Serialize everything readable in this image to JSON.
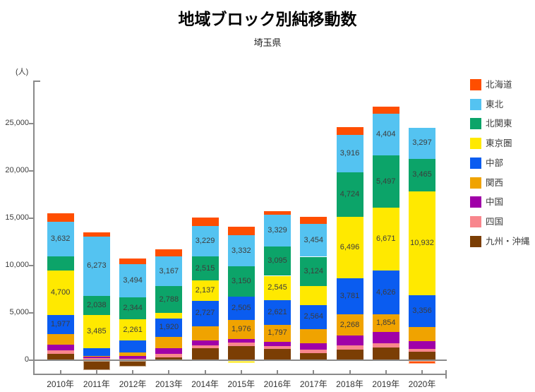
{
  "chart_data": {
    "type": "bar",
    "stacked": true,
    "title": "地域ブロック別純移動数",
    "subtitle": "埼玉県",
    "ylabel": "(人)",
    "xlabel": "",
    "grid": false,
    "legend_position": "right",
    "ylim": [
      -1500,
      29500
    ],
    "axis_color": "#8a8a8a",
    "label_color": "#3c3c3c",
    "y_ticks": [
      {
        "v": 0,
        "label": "0"
      },
      {
        "v": 5000,
        "label": "5,000"
      },
      {
        "v": 10000,
        "label": "10,000"
      },
      {
        "v": 15000,
        "label": "15,000"
      },
      {
        "v": 20000,
        "label": "20,000"
      },
      {
        "v": 25000,
        "label": "25,000"
      }
    ],
    "categories": [
      "2010年",
      "2011年",
      "2012年",
      "2013年",
      "2014年",
      "2015年",
      "2016年",
      "2017年",
      "2018年",
      "2019年",
      "2020年"
    ],
    "stack_bottom_to_top": [
      "九州・沖縄",
      "四国",
      "中国",
      "関西",
      "中部",
      "東京圏",
      "北関東",
      "東北",
      "北海道"
    ],
    "series": [
      {
        "name": "北海道",
        "color": "#FF4E00",
        "values": [
          900,
          420,
          560,
          730,
          930,
          860,
          370,
          740,
          880,
          810,
          -300
        ],
        "labels": [
          null,
          null,
          null,
          null,
          null,
          null,
          null,
          null,
          null,
          null,
          null
        ]
      },
      {
        "name": "東北",
        "color": "#54C3F1",
        "values": [
          3632,
          6273,
          3494,
          3167,
          3229,
          3332,
          3329,
          3454,
          3916,
          4404,
          3297
        ],
        "labels": [
          "3,632",
          "6,273",
          "3,494",
          "3,167",
          "3,229",
          "3,332",
          "3,329",
          "3,454",
          "3,916",
          "4,404",
          "3,297"
        ]
      },
      {
        "name": "北関東",
        "color": "#0CA469",
        "values": [
          1500,
          2038,
          2344,
          2788,
          2515,
          3150,
          3095,
          3124,
          4724,
          5497,
          3465
        ],
        "labels": [
          null,
          "2,038",
          "2,344",
          "2,788",
          "2,515",
          "3,150",
          "3,095",
          "3,124",
          "4,724",
          "5,497",
          "3,465"
        ]
      },
      {
        "name": "東京圏",
        "color": "#FFE900",
        "values": [
          4700,
          3485,
          2261,
          610,
          2137,
          -245,
          2545,
          1960,
          6496,
          6671,
          10932
        ],
        "labels": [
          "4,700",
          "3,485",
          "2,261",
          null,
          "2,137",
          null,
          "2,545",
          null,
          "6,496",
          "6,671",
          "10,932"
        ]
      },
      {
        "name": "中部",
        "color": "#0A5CF0",
        "values": [
          1977,
          850,
          1200,
          1920,
          2727,
          2505,
          2621,
          2564,
          3781,
          4626,
          3356
        ],
        "labels": [
          "1,977",
          null,
          null,
          "1,920",
          "2,727",
          "2,505",
          "2,621",
          "2,564",
          "3,781",
          "4,626",
          "3,356"
        ]
      },
      {
        "name": "関西",
        "color": "#F0A300",
        "values": [
          1180,
          100,
          440,
          1220,
          1500,
          1976,
          1797,
          1500,
          2268,
          1854,
          1550
        ],
        "labels": [
          null,
          null,
          null,
          null,
          null,
          "1,976",
          "1,797",
          null,
          "2,268",
          "1,854",
          null
        ]
      },
      {
        "name": "中国",
        "color": "#A000A8",
        "values": [
          540,
          120,
          240,
          570,
          490,
          420,
          440,
          700,
          1050,
          1150,
          780
        ],
        "labels": [
          null,
          null,
          null,
          null,
          null,
          null,
          null,
          null,
          null,
          null,
          null
        ]
      },
      {
        "name": "四国",
        "color": "#F8868D",
        "values": [
          370,
          150,
          100,
          370,
          320,
          370,
          290,
          320,
          420,
          440,
          280
        ],
        "labels": [
          null,
          null,
          null,
          null,
          null,
          null,
          null,
          null,
          null,
          null,
          null
        ]
      },
      {
        "name": "九州・沖縄",
        "color": "#7B3E04",
        "values": [
          630,
          -950,
          -590,
          250,
          1180,
          1400,
          1150,
          690,
          1050,
          1300,
          850
        ],
        "labels": [
          null,
          null,
          null,
          null,
          null,
          null,
          null,
          null,
          null,
          null,
          null
        ]
      }
    ]
  }
}
